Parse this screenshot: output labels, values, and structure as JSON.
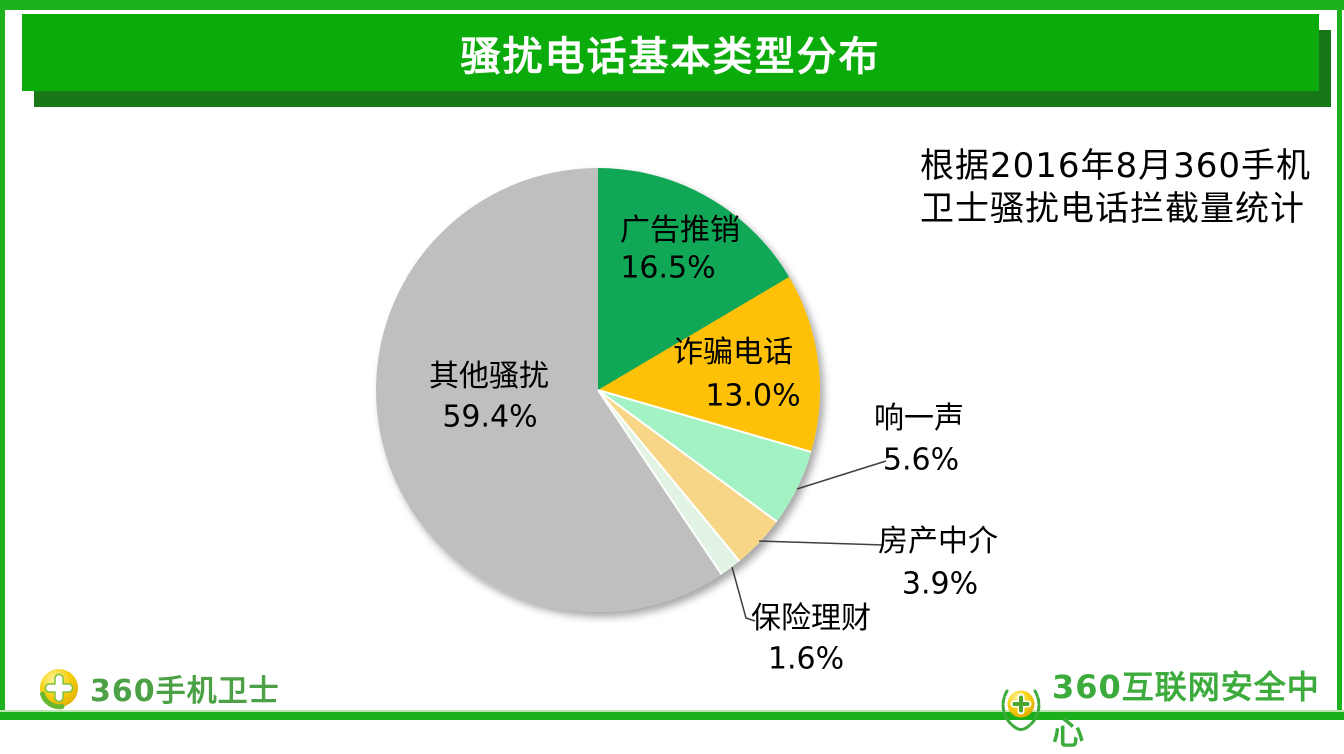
{
  "header": {
    "title": "骚扰电话基本类型分布"
  },
  "annotation": {
    "line1": "根据2016年8月360手机",
    "line2": "卫士骚扰电话拦截量统计"
  },
  "chart_data": {
    "type": "pie",
    "title": "骚扰电话基本类型分布",
    "source_note": "根据2016年8月360手机卫士骚扰电话拦截量统计",
    "start_angle_deg": 0,
    "direction": "clockwise",
    "legend": "none",
    "slices": [
      {
        "label": "广告推销",
        "value": 16.5,
        "pct_label": "16.5%",
        "color": "#10A857",
        "label_position": "inside"
      },
      {
        "label": "诈骗电话",
        "value": 13.0,
        "pct_label": "13.0%",
        "color": "#FFC008",
        "label_position": "inside"
      },
      {
        "label": "响一声",
        "value": 5.6,
        "pct_label": "5.6%",
        "color": "#A3F2C4",
        "label_position": "outside"
      },
      {
        "label": "房产中介",
        "value": 3.9,
        "pct_label": "3.9%",
        "color": "#F7D787",
        "label_position": "outside"
      },
      {
        "label": "保险理财",
        "value": 1.6,
        "pct_label": "1.6%",
        "color": "#E2F3E3",
        "label_position": "outside"
      },
      {
        "label": "其他骚扰",
        "value": 59.4,
        "pct_label": "59.4%",
        "color": "#BFBFBF",
        "label_position": "inside"
      }
    ],
    "separators_after_index": [
      1,
      2,
      3,
      4
    ]
  },
  "footer": {
    "left_logo_text": "360手机卫士",
    "right_logo_text": "360互联网安全中心"
  },
  "colors": {
    "frame_green": "#1DB21D",
    "banner_green": "#0CAB0C",
    "banner_shadow": "#187818",
    "footer_bar_green": "#1BAF1B",
    "logo_green_left": "#4CA045",
    "logo_green_right": "#3CAB3C",
    "leader_line": "#404040"
  }
}
